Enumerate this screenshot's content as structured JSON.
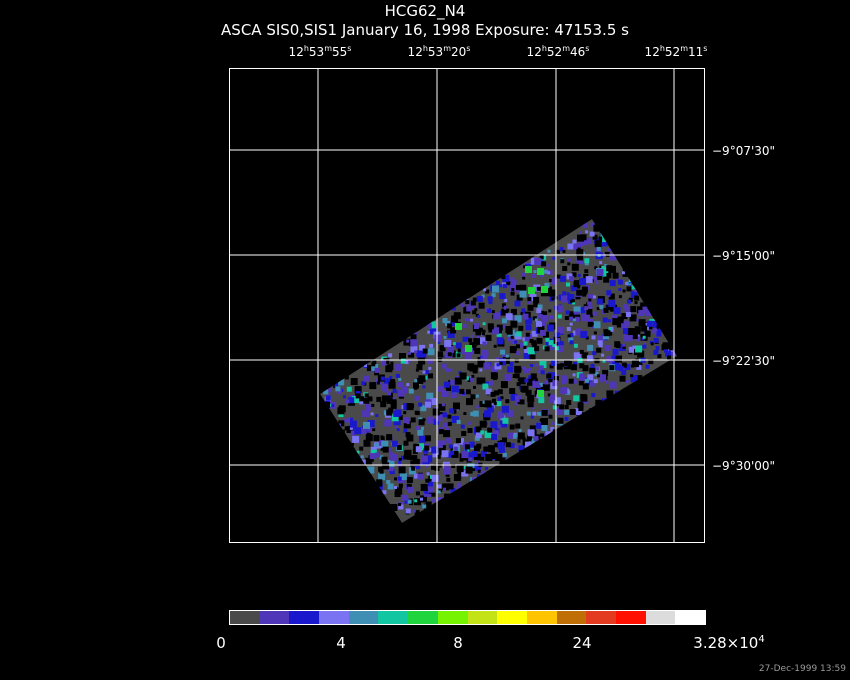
{
  "header": {
    "title": "HCG62_N4",
    "subtitle": "ASCA SIS0,SIS1 January 16, 1998 Exposure: 47153.5 s"
  },
  "ra_ticks": [
    {
      "h": "12",
      "m": "53",
      "s": "55"
    },
    {
      "h": "12",
      "m": "53",
      "s": "20"
    },
    {
      "h": "12",
      "m": "52",
      "s": "46"
    },
    {
      "h": "12",
      "m": "52",
      "s": "11"
    }
  ],
  "dec_ticks": [
    "−9°07'30\"",
    "−9°15'00\"",
    "−9°22'30\"",
    "−9°30'00\""
  ],
  "colorbar": {
    "colors": [
      "#4a4a4a",
      "#4f35b8",
      "#1a18cc",
      "#7a73f2",
      "#3f8fb4",
      "#11c6a1",
      "#1fd43d",
      "#76f300",
      "#c4e317",
      "#ffff00",
      "#ffc400",
      "#bf6f06",
      "#e23b1f",
      "#ff1000",
      "#dcdcdc",
      "#ffffff"
    ],
    "labels": [
      {
        "text": "0"
      },
      {
        "text": "4"
      },
      {
        "text": "8"
      },
      {
        "text": "24"
      },
      {
        "text": "3.28×10",
        "exp": "4"
      }
    ]
  },
  "timestamp": "27-Dec-1999 13:59"
}
